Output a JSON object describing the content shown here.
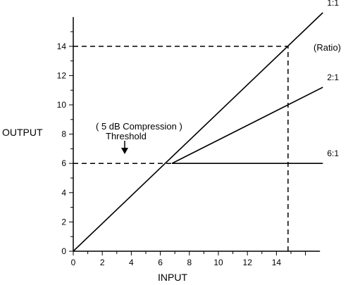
{
  "chart_data": {
    "type": "line",
    "xlabel": "INPUT",
    "ylabel": "OUTPUT",
    "xlim": [
      0,
      17
    ],
    "ylim": [
      0,
      16
    ],
    "x_ticks": [
      0,
      2,
      4,
      6,
      8,
      10,
      12,
      14
    ],
    "y_ticks": [
      0,
      2,
      4,
      6,
      8,
      10,
      12,
      14
    ],
    "x_tick_labels": [
      "0",
      "2",
      "4",
      "6",
      "8",
      "10",
      "12",
      "14"
    ],
    "y_tick_labels": [
      "0",
      "2",
      "4",
      "6",
      "8",
      "10",
      "12",
      "14"
    ],
    "grid": false,
    "series": [
      {
        "name": "1:1",
        "x": [
          0,
          17.2
        ],
        "y": [
          0,
          16.3
        ]
      },
      {
        "name": "2:1",
        "x": [
          6.8,
          17.2
        ],
        "y": [
          6,
          11.2
        ]
      },
      {
        "name": "6:1",
        "x": [
          6.8,
          17.2
        ],
        "y": [
          6,
          6
        ]
      }
    ],
    "reference_lines": [
      {
        "name": "threshold-guide",
        "x": [
          0,
          6.8
        ],
        "y": [
          6,
          6
        ]
      },
      {
        "name": "output-14-guide",
        "x": [
          0,
          14.8
        ],
        "y": [
          14,
          14
        ]
      },
      {
        "name": "input-15-guide",
        "x": [
          14.8,
          14.8
        ],
        "y": [
          0,
          14
        ]
      }
    ],
    "annotations": {
      "ratio": "(Ratio)",
      "compression": "( 5 dB Compression )",
      "threshold": "Threshold"
    }
  }
}
